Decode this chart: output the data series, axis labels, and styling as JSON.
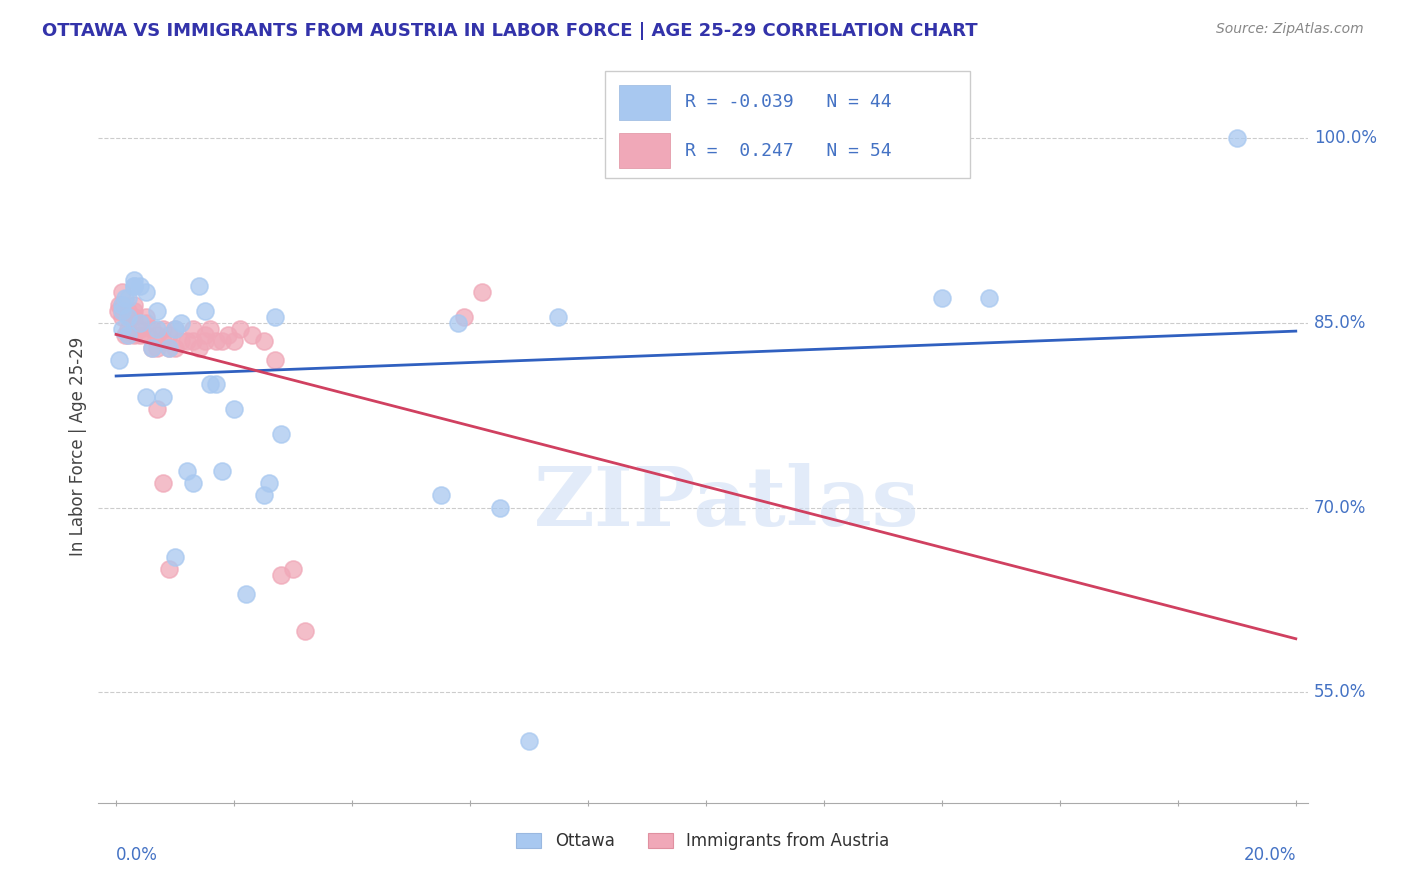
{
  "title": "OTTAWA VS IMMIGRANTS FROM AUSTRIA IN LABOR FORCE | AGE 25-29 CORRELATION CHART",
  "source": "Source: ZipAtlas.com",
  "ylabel": "In Labor Force | Age 25-29",
  "ytick_labels": [
    "55.0%",
    "70.0%",
    "85.0%",
    "100.0%"
  ],
  "ytick_values": [
    0.55,
    0.7,
    0.85,
    1.0
  ],
  "watermark": "ZIPatlas",
  "legend_ottawa_R": -0.039,
  "legend_ottawa_N": 44,
  "legend_austria_R": 0.247,
  "legend_austria_N": 54,
  "ottawa_color": "#a8c8f0",
  "austria_color": "#f0a8b8",
  "ottawa_line_color": "#3060c0",
  "austria_line_color": "#d04060",
  "ottawa_x": [
    0.0005,
    0.001,
    0.001,
    0.001,
    0.0015,
    0.002,
    0.002,
    0.002,
    0.003,
    0.003,
    0.003,
    0.004,
    0.004,
    0.005,
    0.005,
    0.006,
    0.007,
    0.007,
    0.008,
    0.009,
    0.01,
    0.01,
    0.011,
    0.012,
    0.013,
    0.014,
    0.015,
    0.016,
    0.017,
    0.018,
    0.02,
    0.022,
    0.025,
    0.026,
    0.027,
    0.028,
    0.055,
    0.058,
    0.065,
    0.07,
    0.075,
    0.14,
    0.148,
    0.19
  ],
  "ottawa_y": [
    0.82,
    0.845,
    0.86,
    0.865,
    0.87,
    0.84,
    0.87,
    0.855,
    0.88,
    0.88,
    0.885,
    0.85,
    0.88,
    0.875,
    0.79,
    0.83,
    0.845,
    0.86,
    0.79,
    0.83,
    0.845,
    0.66,
    0.85,
    0.73,
    0.72,
    0.88,
    0.86,
    0.8,
    0.8,
    0.73,
    0.78,
    0.63,
    0.71,
    0.72,
    0.855,
    0.76,
    0.71,
    0.85,
    0.7,
    0.51,
    0.855,
    0.87,
    0.87,
    1.0
  ],
  "austria_x": [
    0.0003,
    0.0005,
    0.001,
    0.001,
    0.001,
    0.001,
    0.0015,
    0.002,
    0.002,
    0.002,
    0.0025,
    0.003,
    0.003,
    0.003,
    0.003,
    0.004,
    0.004,
    0.005,
    0.005,
    0.005,
    0.006,
    0.006,
    0.007,
    0.007,
    0.008,
    0.008,
    0.009,
    0.009,
    0.01,
    0.01,
    0.011,
    0.012,
    0.013,
    0.013,
    0.014,
    0.015,
    0.015,
    0.016,
    0.017,
    0.018,
    0.019,
    0.02,
    0.021,
    0.023,
    0.025,
    0.027,
    0.028,
    0.03,
    0.032,
    0.059,
    0.062,
    0.007,
    0.008,
    0.009
  ],
  "austria_y": [
    0.86,
    0.865,
    0.855,
    0.86,
    0.865,
    0.875,
    0.84,
    0.84,
    0.845,
    0.86,
    0.855,
    0.84,
    0.855,
    0.86,
    0.865,
    0.84,
    0.845,
    0.84,
    0.85,
    0.855,
    0.83,
    0.845,
    0.83,
    0.84,
    0.835,
    0.845,
    0.83,
    0.84,
    0.83,
    0.845,
    0.835,
    0.835,
    0.835,
    0.845,
    0.83,
    0.84,
    0.835,
    0.845,
    0.835,
    0.835,
    0.84,
    0.835,
    0.845,
    0.84,
    0.835,
    0.82,
    0.645,
    0.65,
    0.6,
    0.855,
    0.875,
    0.78,
    0.72,
    0.65
  ],
  "xmin": 0.0,
  "xmax": 0.2,
  "ymin": 0.46,
  "ymax": 1.04
}
